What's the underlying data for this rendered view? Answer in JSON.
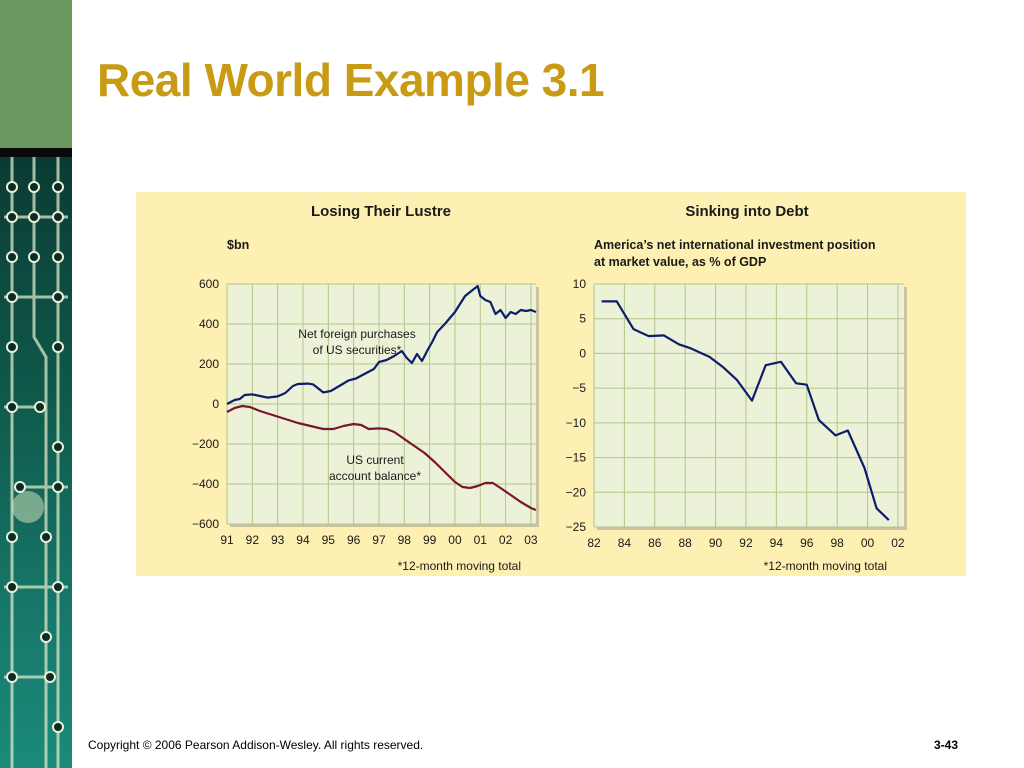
{
  "slide": {
    "title": "Real World Example 3.1",
    "copyright": "Copyright © 2006 Pearson Addison-Wesley. All rights reserved.",
    "page_number": "3-43"
  },
  "colors": {
    "title": "#c99a14",
    "panel_background": "#fdf0b2",
    "plot_background": "#ecf2d8",
    "gridline": "#b5c48a",
    "series_blue": "#0c1d6b",
    "series_red": "#7a1530"
  },
  "chart_data": [
    {
      "type": "line",
      "title": "Losing Their Lustre",
      "ylabel": "$bn",
      "ylim": [
        -600,
        600
      ],
      "yticks": [
        600,
        400,
        200,
        0,
        -200,
        -400,
        -600
      ],
      "ytick_labels": [
        "600",
        "400",
        "200",
        "0",
        "−200",
        "−400",
        "−600"
      ],
      "xlim": [
        1991,
        2003.2
      ],
      "xtick_labels": [
        "91",
        "92",
        "93",
        "94",
        "95",
        "96",
        "97",
        "98",
        "99",
        "00",
        "01",
        "02",
        "03"
      ],
      "footnote": "*12-month moving total",
      "grid": true,
      "series": [
        {
          "name": "Net foreign purchases of US securities*",
          "color": "#0c1d6b",
          "points": [
            [
              1991.0,
              0
            ],
            [
              1991.3,
              20
            ],
            [
              1991.5,
              25
            ],
            [
              1991.7,
              45
            ],
            [
              1992.0,
              48
            ],
            [
              1992.3,
              40
            ],
            [
              1992.6,
              32
            ],
            [
              1993.0,
              38
            ],
            [
              1993.3,
              55
            ],
            [
              1993.6,
              90
            ],
            [
              1993.8,
              100
            ],
            [
              1994.2,
              102
            ],
            [
              1994.4,
              98
            ],
            [
              1994.6,
              78
            ],
            [
              1994.8,
              58
            ],
            [
              1995.1,
              65
            ],
            [
              1995.5,
              95
            ],
            [
              1995.8,
              118
            ],
            [
              1996.1,
              128
            ],
            [
              1996.5,
              155
            ],
            [
              1996.8,
              175
            ],
            [
              1997.0,
              210
            ],
            [
              1997.3,
              220
            ],
            [
              1997.6,
              240
            ],
            [
              1997.9,
              265
            ],
            [
              1998.1,
              230
            ],
            [
              1998.3,
              205
            ],
            [
              1998.5,
              250
            ],
            [
              1998.7,
              215
            ],
            [
              1998.9,
              265
            ],
            [
              1999.1,
              310
            ],
            [
              1999.3,
              360
            ],
            [
              1999.6,
              400
            ],
            [
              1999.8,
              430
            ],
            [
              2000.0,
              460
            ],
            [
              2000.2,
              500
            ],
            [
              2000.4,
              540
            ],
            [
              2000.6,
              560
            ],
            [
              2000.8,
              580
            ],
            [
              2000.9,
              590
            ],
            [
              2001.0,
              540
            ],
            [
              2001.2,
              520
            ],
            [
              2001.4,
              510
            ],
            [
              2001.6,
              450
            ],
            [
              2001.8,
              470
            ],
            [
              2002.0,
              430
            ],
            [
              2002.2,
              460
            ],
            [
              2002.4,
              450
            ],
            [
              2002.6,
              470
            ],
            [
              2002.8,
              465
            ],
            [
              2003.0,
              470
            ],
            [
              2003.2,
              460
            ]
          ]
        },
        {
          "name": "US current account balance*",
          "color": "#7a1530",
          "points": [
            [
              1991.0,
              -40
            ],
            [
              1991.3,
              -20
            ],
            [
              1991.6,
              -10
            ],
            [
              1991.9,
              -15
            ],
            [
              1992.3,
              -35
            ],
            [
              1992.8,
              -55
            ],
            [
              1993.3,
              -75
            ],
            [
              1993.8,
              -95
            ],
            [
              1994.3,
              -110
            ],
            [
              1994.8,
              -125
            ],
            [
              1995.2,
              -125
            ],
            [
              1995.6,
              -110
            ],
            [
              1996.0,
              -100
            ],
            [
              1996.3,
              -105
            ],
            [
              1996.6,
              -125
            ],
            [
              1997.0,
              -122
            ],
            [
              1997.3,
              -125
            ],
            [
              1997.6,
              -140
            ],
            [
              1998.0,
              -175
            ],
            [
              1998.4,
              -210
            ],
            [
              1998.8,
              -245
            ],
            [
              1999.2,
              -290
            ],
            [
              1999.6,
              -340
            ],
            [
              2000.0,
              -390
            ],
            [
              2000.3,
              -415
            ],
            [
              2000.6,
              -420
            ],
            [
              2000.9,
              -410
            ],
            [
              2001.2,
              -395
            ],
            [
              2001.5,
              -395
            ],
            [
              2001.8,
              -420
            ],
            [
              2002.2,
              -455
            ],
            [
              2002.6,
              -490
            ],
            [
              2003.0,
              -520
            ],
            [
              2003.2,
              -530
            ]
          ]
        }
      ],
      "annotations": [
        [
          "Net foreign purchases",
          "of US securities*"
        ],
        [
          "US current",
          "account balance*"
        ]
      ]
    },
    {
      "type": "line",
      "title": "Sinking into Debt",
      "subtitle_lines": [
        "America’s net international investment position",
        "at market value, as % of GDP"
      ],
      "ylim": [
        -25,
        10
      ],
      "yticks": [
        10,
        5,
        0,
        -5,
        -10,
        -15,
        -20,
        -25
      ],
      "ytick_labels": [
        "10",
        "5",
        "0",
        "−5",
        "−10",
        "−15",
        "−20",
        "−25"
      ],
      "xlim": [
        1982,
        2002.4
      ],
      "xtick_labels": [
        "82",
        "84",
        "86",
        "88",
        "90",
        "92",
        "94",
        "96",
        "98",
        "00",
        "02"
      ],
      "footnote": "*12-month moving total",
      "grid": true,
      "series": [
        {
          "color": "#0c1d6b",
          "points": [
            [
              1982.5,
              7.5
            ],
            [
              1983.5,
              7.5
            ],
            [
              1984.6,
              3.5
            ],
            [
              1985.6,
              2.5
            ],
            [
              1986.6,
              2.6
            ],
            [
              1987.6,
              1.3
            ],
            [
              1988.3,
              0.8
            ],
            [
              1989.6,
              -0.5
            ],
            [
              1990.5,
              -2
            ],
            [
              1991.4,
              -3.8
            ],
            [
              1992.4,
              -6.8
            ],
            [
              1993.3,
              -1.7
            ],
            [
              1994.3,
              -1.2
            ],
            [
              1995.3,
              -4.3
            ],
            [
              1996.0,
              -4.5
            ],
            [
              1996.8,
              -9.6
            ],
            [
              1997.9,
              -11.8
            ],
            [
              1998.7,
              -11.1
            ],
            [
              1999.8,
              -16.5
            ],
            [
              2000.6,
              -22.3
            ],
            [
              2001.4,
              -24
            ]
          ]
        }
      ]
    }
  ]
}
